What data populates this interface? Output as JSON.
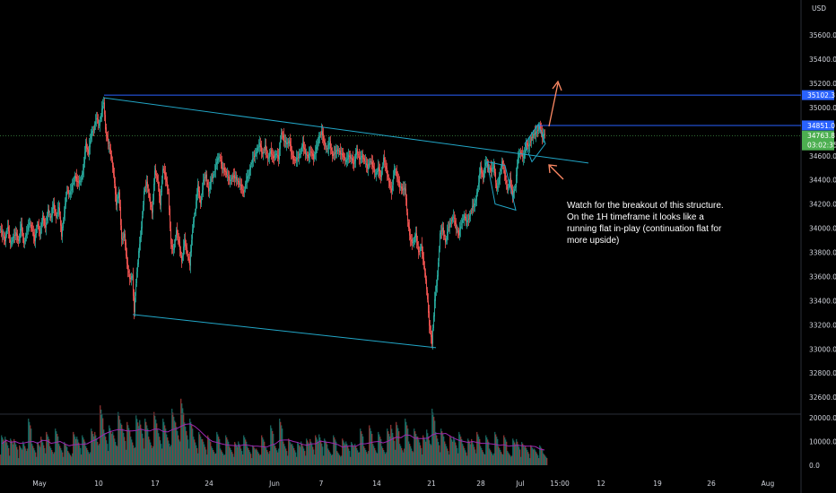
{
  "currency": "USD",
  "chart_data": {
    "type": "candlestick",
    "y_axis": {
      "ticks": [
        32600,
        32800,
        33000,
        33200,
        33400,
        33600,
        33800,
        34000,
        34200,
        34400,
        34600,
        35000,
        35200,
        35400,
        35600
      ],
      "ylim": [
        32460,
        35890
      ]
    },
    "x_axis": {
      "tick_labels": [
        "May",
        "10",
        "17",
        "24",
        "Jun",
        "7",
        "14",
        "21",
        "28",
        "Jul",
        "15:00",
        "12",
        "19",
        "26",
        "Aug"
      ]
    },
    "price_series": [
      [
        0,
        34000
      ],
      [
        3,
        33950
      ],
      [
        6,
        33900
      ],
      [
        9,
        34020
      ],
      [
        12,
        33870
      ],
      [
        15,
        33920
      ],
      [
        18,
        33960
      ],
      [
        21,
        33890
      ],
      [
        24,
        34030
      ],
      [
        27,
        33870
      ],
      [
        30,
        33960
      ],
      [
        33,
        34050
      ],
      [
        36,
        34000
      ],
      [
        39,
        33900
      ],
      [
        42,
        34040
      ],
      [
        45,
        33950
      ],
      [
        48,
        34100
      ],
      [
        51,
        34000
      ],
      [
        54,
        34150
      ],
      [
        57,
        34080
      ],
      [
        60,
        34200
      ],
      [
        63,
        34090
      ],
      [
        66,
        34180
      ],
      [
        69,
        33940
      ],
      [
        72,
        34130
      ],
      [
        75,
        34320
      ],
      [
        78,
        34280
      ],
      [
        81,
        34350
      ],
      [
        84,
        34430
      ],
      [
        87,
        34380
      ],
      [
        90,
        34390
      ],
      [
        93,
        34470
      ],
      [
        96,
        34700
      ],
      [
        99,
        34620
      ],
      [
        102,
        34780
      ],
      [
        105,
        34820
      ],
      [
        108,
        34920
      ],
      [
        111,
        34850
      ],
      [
        114,
        34980
      ],
      [
        116,
        35050
      ],
      [
        118,
        34820
      ],
      [
        121,
        34700
      ],
      [
        124,
        34620
      ],
      [
        127,
        34450
      ],
      [
        130,
        34200
      ],
      [
        133,
        34300
      ],
      [
        136,
        33900
      ],
      [
        139,
        33950
      ],
      [
        142,
        33700
      ],
      [
        145,
        33580
      ],
      [
        148,
        33600
      ],
      [
        150,
        33300
      ],
      [
        152,
        33550
      ],
      [
        155,
        33800
      ],
      [
        158,
        34000
      ],
      [
        161,
        34300
      ],
      [
        164,
        34380
      ],
      [
        167,
        34250
      ],
      [
        170,
        34120
      ],
      [
        173,
        34480
      ],
      [
        176,
        34400
      ],
      [
        179,
        34200
      ],
      [
        182,
        34500
      ],
      [
        185,
        34420
      ],
      [
        188,
        34300
      ],
      [
        191,
        33860
      ],
      [
        194,
        33820
      ],
      [
        197,
        33980
      ],
      [
        200,
        33880
      ],
      [
        203,
        33720
      ],
      [
        206,
        33900
      ],
      [
        209,
        33800
      ],
      [
        212,
        33700
      ],
      [
        215,
        34000
      ],
      [
        218,
        34150
      ],
      [
        221,
        34350
      ],
      [
        224,
        34200
      ],
      [
        227,
        34390
      ],
      [
        230,
        34440
      ],
      [
        233,
        34300
      ],
      [
        236,
        34410
      ],
      [
        239,
        34450
      ],
      [
        242,
        34550
      ],
      [
        245,
        34600
      ],
      [
        248,
        34500
      ],
      [
        251,
        34480
      ],
      [
        254,
        34430
      ],
      [
        257,
        34390
      ],
      [
        260,
        34430
      ],
      [
        263,
        34420
      ],
      [
        266,
        34380
      ],
      [
        269,
        34350
      ],
      [
        272,
        34290
      ],
      [
        275,
        34400
      ],
      [
        278,
        34450
      ],
      [
        281,
        34550
      ],
      [
        284,
        34600
      ],
      [
        287,
        34650
      ],
      [
        290,
        34700
      ],
      [
        293,
        34610
      ],
      [
        296,
        34680
      ],
      [
        299,
        34570
      ],
      [
        302,
        34640
      ],
      [
        305,
        34580
      ],
      [
        308,
        34620
      ],
      [
        311,
        34580
      ],
      [
        314,
        34800
      ],
      [
        317,
        34730
      ],
      [
        320,
        34700
      ],
      [
        323,
        34720
      ],
      [
        326,
        34600
      ],
      [
        329,
        34560
      ],
      [
        332,
        34580
      ],
      [
        335,
        34620
      ],
      [
        338,
        34700
      ],
      [
        341,
        34620
      ],
      [
        344,
        34590
      ],
      [
        347,
        34640
      ],
      [
        350,
        34580
      ],
      [
        353,
        34660
      ],
      [
        356,
        34750
      ],
      [
        359,
        34800
      ],
      [
        362,
        34700
      ],
      [
        365,
        34650
      ],
      [
        368,
        34710
      ],
      [
        371,
        34600
      ],
      [
        374,
        34630
      ],
      [
        377,
        34650
      ],
      [
        380,
        34620
      ],
      [
        383,
        34600
      ],
      [
        386,
        34550
      ],
      [
        389,
        34600
      ],
      [
        392,
        34580
      ],
      [
        395,
        34530
      ],
      [
        398,
        34650
      ],
      [
        401,
        34570
      ],
      [
        404,
        34600
      ],
      [
        407,
        34560
      ],
      [
        410,
        34500
      ],
      [
        413,
        34560
      ],
      [
        416,
        34520
      ],
      [
        419,
        34440
      ],
      [
        422,
        34500
      ],
      [
        425,
        34420
      ],
      [
        428,
        34580
      ],
      [
        431,
        34490
      ],
      [
        434,
        34380
      ],
      [
        437,
        34300
      ],
      [
        440,
        34500
      ],
      [
        443,
        34430
      ],
      [
        446,
        34350
      ],
      [
        449,
        34320
      ],
      [
        452,
        34330
      ],
      [
        455,
        34050
      ],
      [
        458,
        33900
      ],
      [
        461,
        33880
      ],
      [
        464,
        33950
      ],
      [
        467,
        33800
      ],
      [
        470,
        33850
      ],
      [
        473,
        33700
      ],
      [
        476,
        33500
      ],
      [
        479,
        33200
      ],
      [
        482,
        33050
      ],
      [
        485,
        33400
      ],
      [
        488,
        33600
      ],
      [
        491,
        33950
      ],
      [
        494,
        34000
      ],
      [
        497,
        33880
      ],
      [
        500,
        34000
      ],
      [
        503,
        34050
      ],
      [
        506,
        34100
      ],
      [
        509,
        34000
      ],
      [
        512,
        33950
      ],
      [
        515,
        34050
      ],
      [
        518,
        34100
      ],
      [
        521,
        34050
      ],
      [
        524,
        34100
      ],
      [
        527,
        34180
      ],
      [
        530,
        34200
      ],
      [
        533,
        34330
      ],
      [
        536,
        34500
      ],
      [
        539,
        34420
      ],
      [
        542,
        34550
      ],
      [
        545,
        34500
      ],
      [
        548,
        34480
      ],
      [
        551,
        34520
      ],
      [
        554,
        34320
      ],
      [
        557,
        34410
      ],
      [
        560,
        34550
      ],
      [
        563,
        34450
      ],
      [
        566,
        34320
      ],
      [
        569,
        34400
      ],
      [
        572,
        34270
      ],
      [
        575,
        34350
      ],
      [
        578,
        34600
      ],
      [
        581,
        34630
      ],
      [
        584,
        34580
      ],
      [
        587,
        34700
      ],
      [
        590,
        34680
      ],
      [
        593,
        34750
      ],
      [
        596,
        34780
      ],
      [
        599,
        34800
      ],
      [
        602,
        34850
      ],
      [
        605,
        34760
      ],
      [
        608,
        34780
      ]
    ],
    "volume_series": [
      [
        0,
        9000
      ],
      [
        5,
        12000
      ],
      [
        10,
        8000
      ],
      [
        15,
        11000
      ],
      [
        20,
        6000
      ],
      [
        25,
        10000
      ],
      [
        30,
        14000
      ],
      [
        35,
        9000
      ],
      [
        40,
        7000
      ],
      [
        45,
        12000
      ],
      [
        50,
        10000
      ],
      [
        55,
        8000
      ],
      [
        60,
        11000
      ],
      [
        65,
        9000
      ],
      [
        70,
        7000
      ],
      [
        75,
        6000
      ],
      [
        80,
        10000
      ],
      [
        85,
        12000
      ],
      [
        90,
        9000
      ],
      [
        95,
        8000
      ],
      [
        100,
        11000
      ],
      [
        105,
        14000
      ],
      [
        110,
        18000
      ],
      [
        115,
        15000
      ],
      [
        120,
        12000
      ],
      [
        125,
        14000
      ],
      [
        130,
        16000
      ],
      [
        135,
        17000
      ],
      [
        140,
        13000
      ],
      [
        145,
        12000
      ],
      [
        150,
        15000
      ],
      [
        155,
        19000
      ],
      [
        160,
        14000
      ],
      [
        165,
        12000
      ],
      [
        170,
        16000
      ],
      [
        175,
        15000
      ],
      [
        180,
        14000
      ],
      [
        185,
        13000
      ],
      [
        190,
        17000
      ],
      [
        195,
        18000
      ],
      [
        200,
        20000
      ],
      [
        205,
        18000
      ],
      [
        210,
        14000
      ],
      [
        215,
        12000
      ],
      [
        220,
        10000
      ],
      [
        225,
        11000
      ],
      [
        230,
        9000
      ],
      [
        235,
        8000
      ],
      [
        240,
        10000
      ],
      [
        245,
        7000
      ],
      [
        250,
        9000
      ],
      [
        255,
        8000
      ],
      [
        260,
        7000
      ],
      [
        265,
        10000
      ],
      [
        270,
        9000
      ],
      [
        275,
        8000
      ],
      [
        280,
        6000
      ],
      [
        285,
        7000
      ],
      [
        290,
        9000
      ],
      [
        295,
        8000
      ],
      [
        300,
        12000
      ],
      [
        305,
        9000
      ],
      [
        310,
        14000
      ],
      [
        315,
        10000
      ],
      [
        320,
        8000
      ],
      [
        325,
        9000
      ],
      [
        330,
        7000
      ],
      [
        335,
        10000
      ],
      [
        340,
        8000
      ],
      [
        345,
        11000
      ],
      [
        350,
        9000
      ],
      [
        355,
        13000
      ],
      [
        360,
        8000
      ],
      [
        365,
        7000
      ],
      [
        370,
        9000
      ],
      [
        375,
        6000
      ],
      [
        380,
        8000
      ],
      [
        385,
        10000
      ],
      [
        390,
        7000
      ],
      [
        395,
        9000
      ],
      [
        400,
        11000
      ],
      [
        405,
        8000
      ],
      [
        410,
        12000
      ],
      [
        415,
        9000
      ],
      [
        420,
        10000
      ],
      [
        425,
        8000
      ],
      [
        430,
        11000
      ],
      [
        435,
        17000
      ],
      [
        440,
        13000
      ],
      [
        445,
        9000
      ],
      [
        450,
        14000
      ],
      [
        455,
        10000
      ],
      [
        460,
        11000
      ],
      [
        465,
        12000
      ],
      [
        470,
        9000
      ],
      [
        475,
        15000
      ],
      [
        480,
        17000
      ],
      [
        485,
        14000
      ],
      [
        490,
        11000
      ],
      [
        495,
        10000
      ],
      [
        500,
        9000
      ],
      [
        505,
        12000
      ],
      [
        510,
        10000
      ],
      [
        515,
        9000
      ],
      [
        520,
        8000
      ],
      [
        525,
        11000
      ],
      [
        530,
        10000
      ],
      [
        535,
        8000
      ],
      [
        540,
        9000
      ],
      [
        545,
        7000
      ],
      [
        550,
        10000
      ],
      [
        555,
        8000
      ],
      [
        560,
        9000
      ],
      [
        565,
        6000
      ],
      [
        570,
        8000
      ],
      [
        575,
        11000
      ],
      [
        580,
        7000
      ],
      [
        585,
        8000
      ],
      [
        590,
        6000
      ],
      [
        595,
        7000
      ],
      [
        600,
        6000
      ],
      [
        605,
        5000
      ]
    ],
    "volume_axis": {
      "ticks": [
        "20000.0",
        "10000.0",
        "0.0"
      ]
    },
    "price_tags": [
      {
        "label": "35102.3",
        "value": 35102.3
      },
      {
        "label": "34851.0",
        "value": 34851.0
      },
      {
        "label": "34763.8",
        "value": 34763.8,
        "sub": "03:02:35"
      }
    ],
    "annotation": {
      "lines": [
        "Watch for the breakout of this structure.",
        "On the 1H timeframe it looks like a",
        "running flat in-play (continuation flat for",
        "more upside)"
      ]
    },
    "colors": {
      "up": "#26a69a",
      "down": "#ef5350",
      "blue_line": "#2962ff",
      "channel": "#22a7c8",
      "arrow": "#ff8a65",
      "last_price": "#4caf50"
    }
  }
}
